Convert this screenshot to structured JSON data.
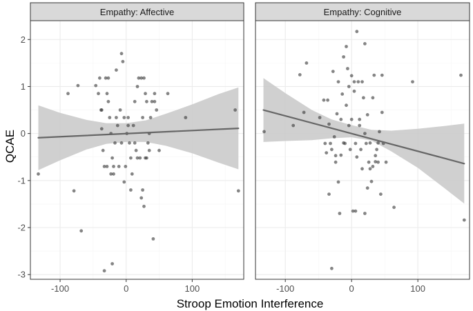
{
  "chart_data": {
    "type": "scatter",
    "ylabel": "QCAE",
    "xlabel": "Stroop  Emotion  Interference",
    "xlim": [
      -145,
      178
    ],
    "ylim": [
      -3.1,
      2.4
    ],
    "x_ticks": [
      -100,
      0,
      100
    ],
    "y_ticks": [
      -3,
      -2,
      -1,
      0,
      1,
      2
    ],
    "x_tick_labels": [
      "-100",
      "0",
      "100"
    ],
    "y_tick_labels": [
      "-3",
      "-2",
      "-1",
      "0",
      "1",
      "2"
    ],
    "grid": true,
    "colors": {
      "point": "#333333",
      "line": "#666666",
      "ribbon": "#c8c8c8",
      "strip": "#d9d9d9",
      "grid_major": "#ebebeb",
      "grid_minor": "#f5f5f5",
      "panel_border": "#333333"
    },
    "panels": [
      {
        "title": "Empathy: Affective",
        "fit": {
          "x": [
            -133,
            170
          ],
          "y": [
            -0.09,
            0.11
          ]
        },
        "ribbon": {
          "x": [
            -133,
            -100,
            -60,
            -30,
            0,
            30,
            60,
            100,
            140,
            170
          ],
          "upper": [
            0.6,
            0.44,
            0.29,
            0.22,
            0.22,
            0.28,
            0.42,
            0.62,
            0.84,
            0.98
          ],
          "lower": [
            -0.78,
            -0.57,
            -0.34,
            -0.22,
            -0.18,
            -0.18,
            -0.26,
            -0.42,
            -0.62,
            -0.76
          ]
        },
        "points": [
          [
            -133,
            -0.86
          ],
          [
            -88,
            0.85
          ],
          [
            -73,
            1.02
          ],
          [
            -79,
            -1.22
          ],
          [
            -68,
            -2.07
          ],
          [
            -46,
            1.02
          ],
          [
            -42,
            0.85
          ],
          [
            -40,
            1.18
          ],
          [
            -38,
            0.5
          ],
          [
            -37,
            0.1
          ],
          [
            -35,
            -0.36
          ],
          [
            -33,
            -0.7
          ],
          [
            -31,
            1.18
          ],
          [
            -29,
            0.85
          ],
          [
            -27,
            0.68
          ],
          [
            -25,
            0.34
          ],
          [
            -23,
            0.0
          ],
          [
            -21,
            -0.52
          ],
          [
            -19,
            -0.86
          ],
          [
            -17,
            -0.2
          ],
          [
            -15,
            1.35
          ],
          [
            -13,
            0.17
          ],
          [
            -11,
            -0.7
          ],
          [
            -9,
            0.5
          ],
          [
            -7,
            1.7
          ],
          [
            -5,
            1.53
          ],
          [
            -3,
            -1.03
          ],
          [
            -1,
            -0.7
          ],
          [
            1,
            0.0
          ],
          [
            3,
            0.34
          ],
          [
            5,
            -0.2
          ],
          [
            7,
            -1.2
          ],
          [
            9,
            -0.86
          ],
          [
            11,
            0.17
          ],
          [
            13,
            0.68
          ],
          [
            15,
            -0.36
          ],
          [
            17,
            1.0
          ],
          [
            19,
            1.18
          ],
          [
            21,
            -0.52
          ],
          [
            23,
            -1.37
          ],
          [
            25,
            0.34
          ],
          [
            27,
            1.18
          ],
          [
            29,
            0.85
          ],
          [
            31,
            -0.52
          ],
          [
            33,
            -0.2
          ],
          [
            35,
            -0.36
          ],
          [
            37,
            0.34
          ],
          [
            39,
            0.68
          ],
          [
            41,
            -2.24
          ],
          [
            43,
            0.85
          ],
          [
            46,
            0.5
          ],
          [
            50,
            -0.36
          ],
          [
            63,
            0.85
          ],
          [
            90,
            0.34
          ],
          [
            165,
            0.5
          ],
          [
            170,
            -1.22
          ],
          [
            -33,
            -2.92
          ],
          [
            -21,
            -2.77
          ],
          [
            -27,
            1.18
          ],
          [
            -29,
            -0.7
          ],
          [
            -23,
            -0.86
          ],
          [
            -19,
            -0.7
          ],
          [
            -15,
            0.34
          ],
          [
            -7,
            -0.2
          ],
          [
            -3,
            0.34
          ],
          [
            3,
            0.17
          ],
          [
            7,
            -0.52
          ],
          [
            13,
            -0.2
          ],
          [
            17,
            -0.52
          ],
          [
            23,
            1.18
          ],
          [
            25,
            -1.2
          ],
          [
            27,
            -1.55
          ],
          [
            29,
            -0.52
          ],
          [
            31,
            0.68
          ],
          [
            35,
            0.0
          ],
          [
            43,
            0.68
          ],
          [
            -37,
            0.5
          ]
        ]
      },
      {
        "title": "Empathy: Cognitive",
        "fit": {
          "x": [
            -133,
            170
          ],
          "y": [
            0.5,
            -0.64
          ]
        },
        "ribbon": {
          "x": [
            -133,
            -100,
            -60,
            -30,
            0,
            30,
            60,
            100,
            140,
            170
          ],
          "upper": [
            1.18,
            0.86,
            0.5,
            0.3,
            0.18,
            0.08,
            0.06,
            0.1,
            0.16,
            0.21
          ],
          "lower": [
            -0.18,
            -0.16,
            -0.14,
            -0.1,
            -0.08,
            -0.15,
            -0.38,
            -0.73,
            -1.16,
            -1.49
          ]
        },
        "points": [
          [
            -132,
            0.04
          ],
          [
            -88,
            0.17
          ],
          [
            -78,
            1.25
          ],
          [
            -72,
            0.45
          ],
          [
            -68,
            1.5
          ],
          [
            -48,
            0.34
          ],
          [
            -42,
            0.71
          ],
          [
            -40,
            -0.21
          ],
          [
            -38,
            -0.41
          ],
          [
            -36,
            0.71
          ],
          [
            -34,
            -1.29
          ],
          [
            -32,
            -0.21
          ],
          [
            -30,
            -2.87
          ],
          [
            -28,
            1.32
          ],
          [
            -26,
            -0.07
          ],
          [
            -24,
            -0.47
          ],
          [
            -22,
            0.42
          ],
          [
            -20,
            -1.03
          ],
          [
            -18,
            -1.7
          ],
          [
            -16,
            -0.46
          ],
          [
            -14,
            0.84
          ],
          [
            -12,
            1.63
          ],
          [
            -10,
            -0.21
          ],
          [
            -8,
            1.85
          ],
          [
            -6,
            1.38
          ],
          [
            -4,
            0.17
          ],
          [
            -2,
            -0.34
          ],
          [
            0,
            1.23
          ],
          [
            2,
            -1.65
          ],
          [
            4,
            1.1
          ],
          [
            6,
            -0.21
          ],
          [
            8,
            2.17
          ],
          [
            10,
            1.1
          ],
          [
            12,
            0.17
          ],
          [
            14,
            -0.34
          ],
          [
            16,
            1.1
          ],
          [
            18,
            0.76
          ],
          [
            20,
            1.91
          ],
          [
            22,
            -0.21
          ],
          [
            24,
            -1.16
          ],
          [
            26,
            -0.61
          ],
          [
            28,
            -0.75
          ],
          [
            30,
            -1.02
          ],
          [
            32,
            0.76
          ],
          [
            34,
            1.24
          ],
          [
            36,
            -0.47
          ],
          [
            38,
            -0.34
          ],
          [
            40,
            -0.61
          ],
          [
            42,
            0.04
          ],
          [
            44,
            -1.29
          ],
          [
            46,
            1.24
          ],
          [
            48,
            -0.21
          ],
          [
            52,
            -0.61
          ],
          [
            64,
            -1.57
          ],
          [
            92,
            1.1
          ],
          [
            165,
            1.24
          ],
          [
            170,
            -1.84
          ],
          [
            -24,
            -0.61
          ],
          [
            -20,
            1.1
          ],
          [
            -16,
            0.3
          ],
          [
            -12,
            -0.2
          ],
          [
            -8,
            0.6
          ],
          [
            -4,
            1.0
          ],
          [
            0,
            0.3
          ],
          [
            4,
            0.9
          ],
          [
            8,
            -0.5
          ],
          [
            12,
            0.3
          ],
          [
            16,
            -0.75
          ],
          [
            20,
            0.0
          ],
          [
            24,
            0.4
          ],
          [
            28,
            -0.2
          ],
          [
            32,
            -0.7
          ],
          [
            36,
            -0.6
          ],
          [
            40,
            -0.2
          ],
          [
            46,
            0.45
          ],
          [
            20,
            -1.7
          ],
          [
            6,
            -1.65
          ],
          [
            -30,
            -0.34
          ],
          [
            -34,
            0.2
          ]
        ]
      }
    ]
  }
}
